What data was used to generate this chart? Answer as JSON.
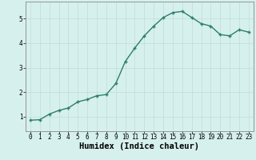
{
  "xlabel": "Humidex (Indice chaleur)",
  "x": [
    0,
    1,
    2,
    3,
    4,
    5,
    6,
    7,
    8,
    9,
    10,
    11,
    12,
    13,
    14,
    15,
    16,
    17,
    18,
    19,
    20,
    21,
    22,
    23
  ],
  "y": [
    0.85,
    0.87,
    1.1,
    1.25,
    1.35,
    1.6,
    1.7,
    1.85,
    1.9,
    2.35,
    3.25,
    3.8,
    4.3,
    4.7,
    5.05,
    5.25,
    5.3,
    5.05,
    4.8,
    4.7,
    4.35,
    4.3,
    4.55,
    4.45
  ],
  "line_color": "#2e7d6e",
  "marker": "+",
  "markersize": 3.5,
  "linewidth": 1.0,
  "bg_color": "#d6f0ee",
  "grid_color": "#c0dcd8",
  "ylim": [
    0.4,
    5.7
  ],
  "xlim": [
    -0.5,
    23.5
  ],
  "yticks": [
    1,
    2,
    3,
    4,
    5
  ],
  "xticks": [
    0,
    1,
    2,
    3,
    4,
    5,
    6,
    7,
    8,
    9,
    10,
    11,
    12,
    13,
    14,
    15,
    16,
    17,
    18,
    19,
    20,
    21,
    22,
    23
  ],
  "tick_fontsize": 5.5,
  "xlabel_fontsize": 7.5,
  "spine_color": "#888888"
}
